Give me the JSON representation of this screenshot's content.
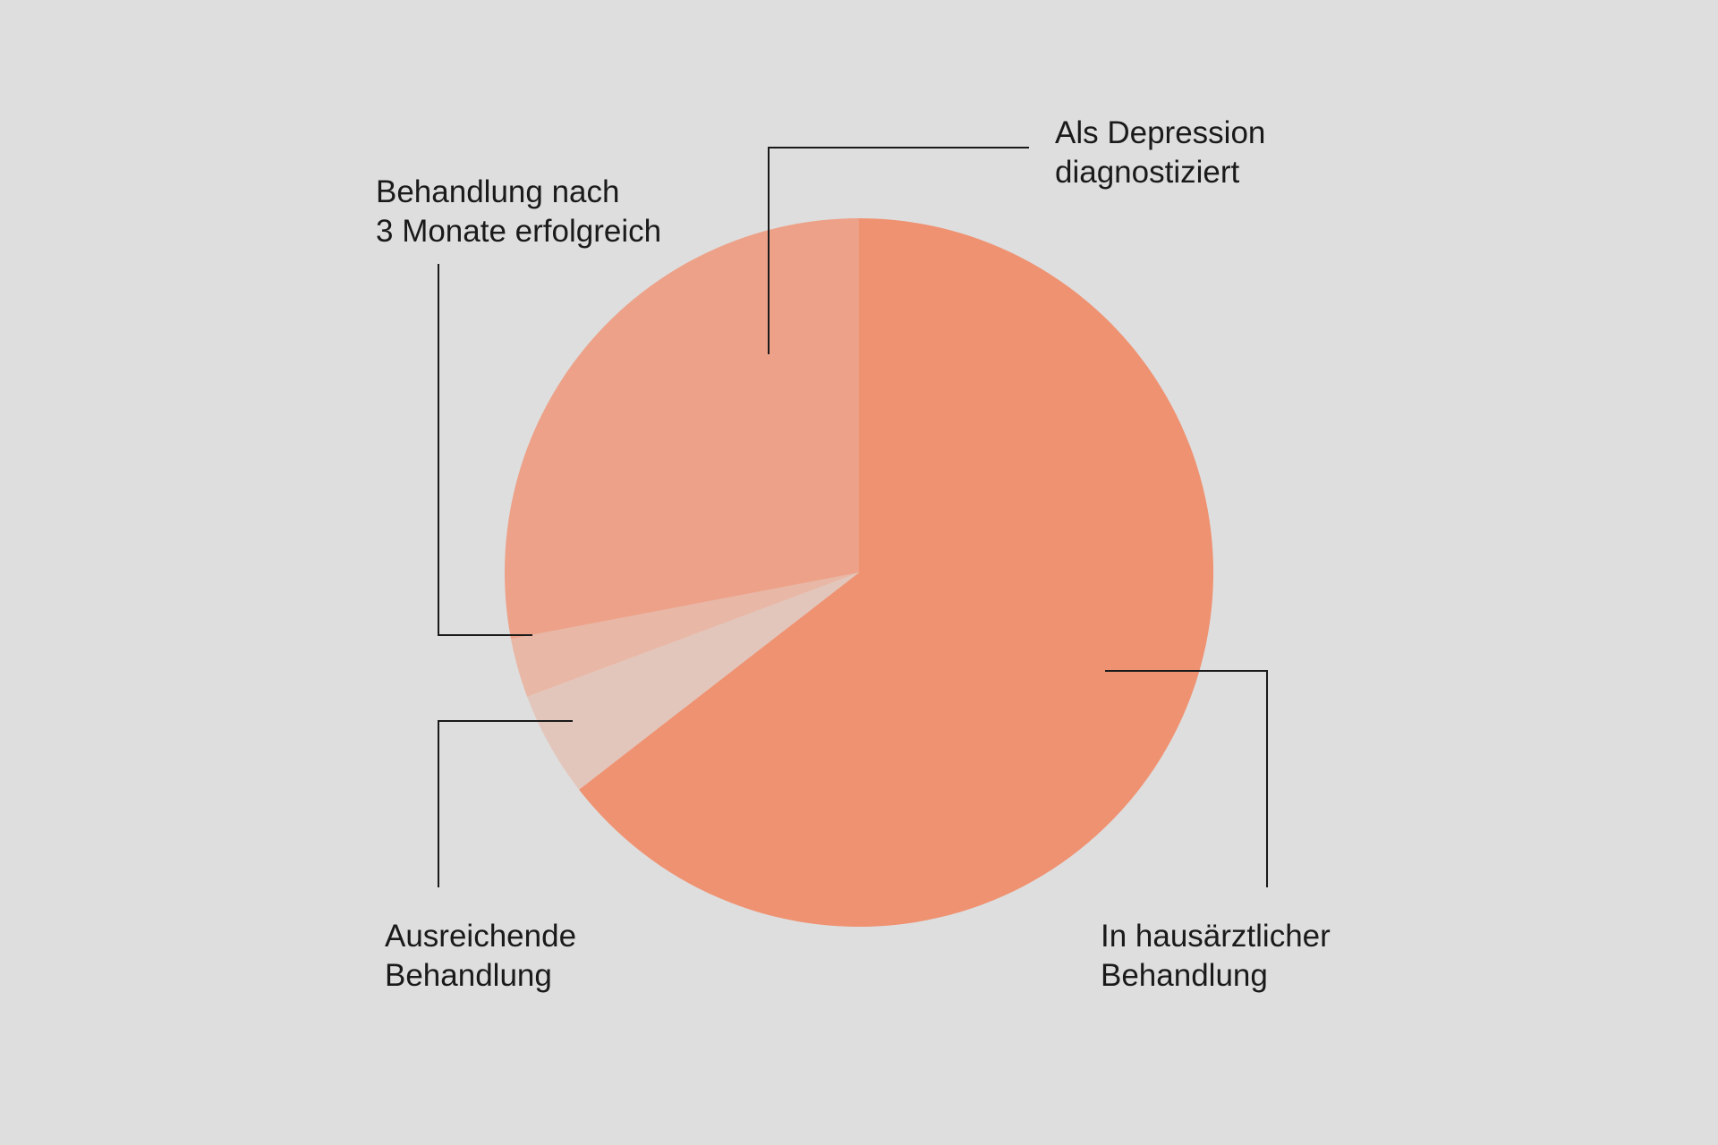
{
  "chart_data": {
    "type": "pie",
    "title": "",
    "start_angle_deg": 0,
    "direction": "clockwise",
    "slices": [
      {
        "key": "primary",
        "label_lines": [
          "In hausärztlicher",
          "Behandlung"
        ],
        "value": 64.5,
        "color": "#ef9272"
      },
      {
        "key": "sufficient",
        "label_lines": [
          "Ausreichende",
          "Behandlung"
        ],
        "value": 4.8,
        "color": "#e3c6bb"
      },
      {
        "key": "successful",
        "label_lines": [
          "Behandlung nach",
          "3 Monate erfolgreich"
        ],
        "value": 2.7,
        "color": "#e8b7a5"
      },
      {
        "key": "diagnosed",
        "label_lines": [
          "Als Depression",
          "diagnostiziert"
        ],
        "value": 28.0,
        "color": "#eda188"
      }
    ],
    "legend": "callout labels with leader lines",
    "grid": false
  },
  "colors": {
    "background": "#dedede",
    "leader_line": "#1a1a1a",
    "text": "#1a1a1a"
  }
}
